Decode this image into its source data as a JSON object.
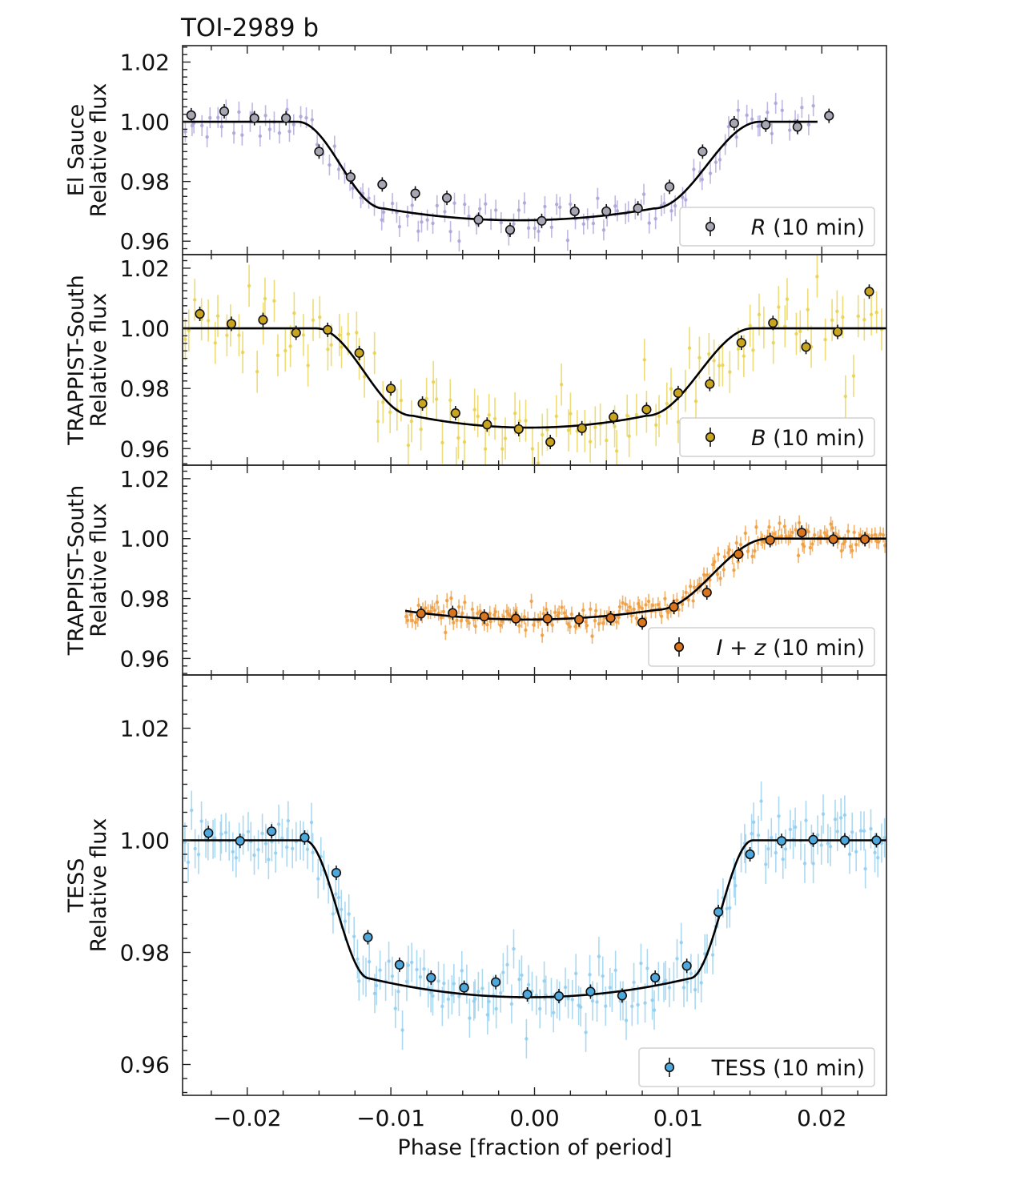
{
  "title": "TOI-2989 b",
  "xlabel": "Phase [fraction of period]",
  "xlim": [
    -0.0245,
    0.0245
  ],
  "x_ticks": [
    {
      "value": -0.02,
      "label": "−0.02"
    },
    {
      "value": -0.01,
      "label": "−0.01"
    },
    {
      "value": 0.0,
      "label": "0.00"
    },
    {
      "value": 0.01,
      "label": "0.01"
    },
    {
      "value": 0.02,
      "label": "0.02"
    }
  ],
  "chart_data": [
    {
      "type": "scatter",
      "ylabel_line1": "El Sauce",
      "ylabel_line2": "Relative flux",
      "ylim": [
        0.9555,
        1.0255
      ],
      "y_ticks": [
        {
          "value": 1.02,
          "label": "1.02"
        },
        {
          "value": 1.0,
          "label": "1.00"
        },
        {
          "value": 0.98,
          "label": "0.98"
        },
        {
          "value": 0.96,
          "label": "0.96"
        }
      ],
      "legend": "R (10 min)",
      "legend_italic": "R",
      "legend_rest": " (10 min)",
      "color": "#a9a2d6",
      "binned_color": "#a7a7b4",
      "model": {
        "x_start": -0.0245,
        "x_end": 0.0197,
        "t1": -0.0165,
        "t2": -0.0105,
        "t3": 0.0083,
        "t4": 0.0157,
        "depth": 0.033,
        "baseline": 1.0
      },
      "binned": {
        "x": [
          -0.0239,
          -0.0216,
          -0.0195,
          -0.0173,
          -0.015,
          -0.0128,
          -0.0106,
          -0.0083,
          -0.0061,
          -0.0039,
          -0.0017,
          0.0005,
          0.0028,
          0.005,
          0.0072,
          0.0094,
          0.0117,
          0.0139,
          0.0161,
          0.0183,
          0.0205
        ],
        "y": [
          1.0022,
          1.0035,
          1.0012,
          1.0012,
          0.99,
          0.9815,
          0.979,
          0.976,
          0.9745,
          0.9672,
          0.9638,
          0.9668,
          0.97,
          0.97,
          0.971,
          0.9782,
          0.99,
          0.9995,
          0.999,
          0.9983,
          1.002
        ]
      },
      "unbinned_count": 120,
      "unbinned_sigma": 0.0032,
      "unbinned_err": 0.0035
    },
    {
      "type": "scatter",
      "ylabel_line1": "TRAPPIST-South",
      "ylabel_line2": "Relative flux",
      "ylim": [
        0.9545,
        1.0245
      ],
      "y_ticks": [
        {
          "value": 1.02,
          "label": "1.02"
        },
        {
          "value": 1.0,
          "label": "1.00"
        },
        {
          "value": 0.98,
          "label": "0.98"
        },
        {
          "value": 0.96,
          "label": "0.96"
        }
      ],
      "legend": "B (10 min)",
      "legend_italic": "B",
      "legend_rest": " (10 min)",
      "color": "#e8d14a",
      "binned_color": "#c9a41e",
      "model": {
        "x_start": -0.0245,
        "x_end": 0.0245,
        "t1": -0.0152,
        "t2": -0.0085,
        "t3": 0.0078,
        "t4": 0.0152,
        "depth": 0.033,
        "baseline": 1.0
      },
      "binned": {
        "x": [
          -0.0233,
          -0.0211,
          -0.0189,
          -0.0166,
          -0.0144,
          -0.0122,
          -0.01,
          -0.0078,
          -0.0055,
          -0.0033,
          -0.0011,
          0.0011,
          0.0033,
          0.0055,
          0.0078,
          0.01,
          0.0122,
          0.0144,
          0.0166,
          0.0189,
          0.0211,
          0.0233
        ],
        "y": [
          1.0048,
          1.0015,
          1.0028,
          0.9985,
          0.9995,
          0.9918,
          0.98,
          0.975,
          0.9718,
          0.968,
          0.9665,
          0.9622,
          0.9668,
          0.9705,
          0.973,
          0.9785,
          0.9815,
          0.9952,
          1.0018,
          0.9938,
          0.9988,
          1.0122
        ]
      },
      "unbinned_count": 120,
      "unbinned_sigma": 0.0065,
      "unbinned_err": 0.007
    },
    {
      "type": "scatter",
      "ylabel_line1": "TRAPPIST-South",
      "ylabel_line2": "Relative flux",
      "ylim": [
        0.9545,
        1.0245
      ],
      "y_ticks": [
        {
          "value": 1.02,
          "label": "1.02"
        },
        {
          "value": 1.0,
          "label": "1.00"
        },
        {
          "value": 0.98,
          "label": "0.98"
        },
        {
          "value": 0.96,
          "label": "0.96"
        }
      ],
      "legend": "I + z (10 min)",
      "legend_italic": "I + z",
      "legend_rest": " (10 min)",
      "color": "#ee9a3a",
      "binned_color": "#d9751f",
      "model": {
        "x_start": -0.009,
        "x_end": 0.0245,
        "t1": -0.016,
        "t2": -0.0095,
        "t3": 0.0085,
        "t4": 0.0163,
        "depth": 0.027,
        "baseline": 1.0
      },
      "binned": {
        "x": [
          -0.0079,
          -0.0057,
          -0.0035,
          -0.0013,
          0.0009,
          0.0031,
          0.0053,
          0.0075,
          0.0097,
          0.012,
          0.0142,
          0.0164,
          0.0186,
          0.0208,
          0.023
        ],
        "y": [
          0.975,
          0.9752,
          0.974,
          0.9733,
          0.9733,
          0.973,
          0.9735,
          0.972,
          0.9772,
          0.982,
          0.9948,
          0.9995,
          1.002,
          0.9998,
          0.9998
        ]
      },
      "unbinned_count": 220,
      "unbinned_sigma": 0.0022,
      "unbinned_err": 0.0025
    },
    {
      "type": "scatter",
      "ylabel_line1": "TESS",
      "ylabel_line2": "Relative flux",
      "ylim": [
        0.9545,
        1.0295
      ],
      "y_ticks": [
        {
          "value": 1.02,
          "label": "1.02"
        },
        {
          "value": 1.0,
          "label": "1.00"
        },
        {
          "value": 0.98,
          "label": "0.98"
        },
        {
          "value": 0.96,
          "label": "0.96"
        }
      ],
      "legend": "TESS (10 min)",
      "legend_italic": "",
      "legend_rest": "TESS (10 min)",
      "color": "#8fcdee",
      "binned_color": "#4fa8dc",
      "model": {
        "x_start": -0.0245,
        "x_end": 0.0245,
        "t1": -0.016,
        "t2": -0.0115,
        "t3": 0.0108,
        "t4": 0.0152,
        "depth": 0.028,
        "baseline": 1.0
      },
      "binned": {
        "x": [
          -0.0227,
          -0.0205,
          -0.0183,
          -0.016,
          -0.0138,
          -0.0116,
          -0.0094,
          -0.0072,
          -0.0049,
          -0.0027,
          -0.0005,
          0.0017,
          0.0039,
          0.0061,
          0.0084,
          0.0106,
          0.0128,
          0.015,
          0.0172,
          0.0194,
          0.0216,
          0.0238
        ],
        "y": [
          1.0013,
          0.9999,
          1.0016,
          1.0005,
          0.9942,
          0.9827,
          0.9778,
          0.9755,
          0.9737,
          0.9747,
          0.9725,
          0.9722,
          0.973,
          0.9723,
          0.9755,
          0.9776,
          0.9872,
          0.9975,
          0.9999,
          1.0001,
          1.0,
          1.0
        ]
      },
      "unbinned_count": 200,
      "unbinned_sigma": 0.0028,
      "unbinned_err": 0.0035
    }
  ]
}
